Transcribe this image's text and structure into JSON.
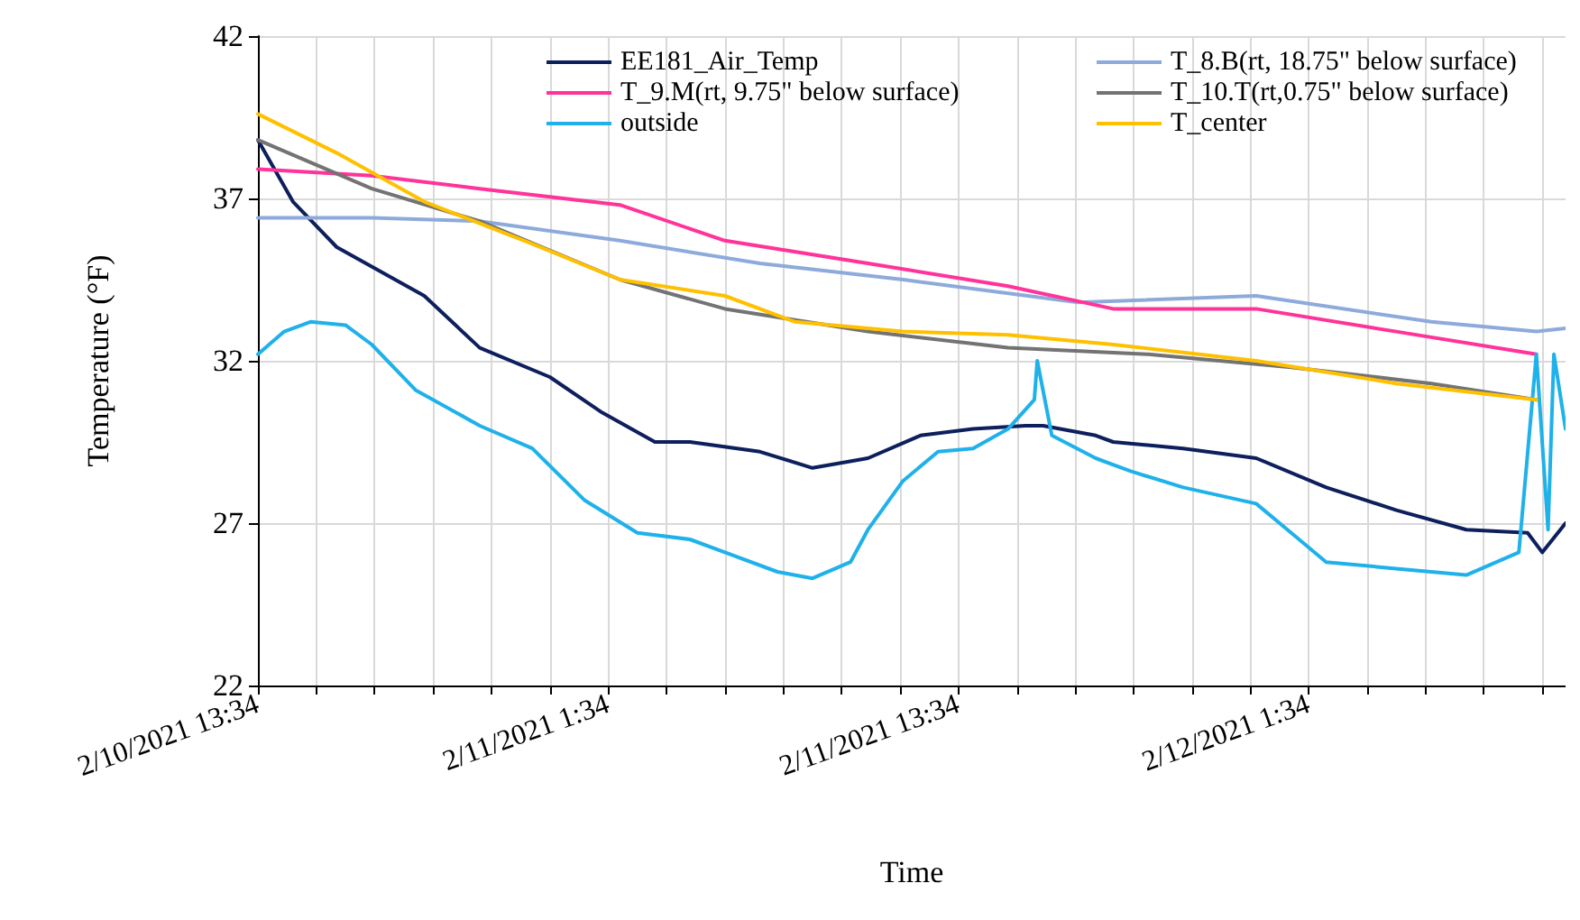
{
  "chart_data": {
    "type": "line",
    "xlabel": "Time",
    "ylabel": "Temperature (°F)",
    "xlim": [
      "2021-02-10T13:34",
      "2021-02-12T10:22"
    ],
    "ylim": [
      22,
      42
    ],
    "xticks": [
      {
        "value": "2021-02-10T13:34",
        "label": "2/10/2021 13:34"
      },
      {
        "value": "2021-02-10T15:34",
        "label": null
      },
      {
        "value": "2021-02-10T17:34",
        "label": null
      },
      {
        "value": "2021-02-10T19:34",
        "label": null
      },
      {
        "value": "2021-02-10T21:34",
        "label": null
      },
      {
        "value": "2021-02-10T23:34",
        "label": null
      },
      {
        "value": "2021-02-11T01:34",
        "label": "2/11/2021 1:34"
      },
      {
        "value": "2021-02-11T03:34",
        "label": null
      },
      {
        "value": "2021-02-11T05:34",
        "label": null
      },
      {
        "value": "2021-02-11T07:34",
        "label": null
      },
      {
        "value": "2021-02-11T09:34",
        "label": null
      },
      {
        "value": "2021-02-11T11:34",
        "label": null
      },
      {
        "value": "2021-02-11T13:34",
        "label": "2/11/2021 13:34"
      },
      {
        "value": "2021-02-11T15:34",
        "label": null
      },
      {
        "value": "2021-02-11T17:34",
        "label": null
      },
      {
        "value": "2021-02-11T19:34",
        "label": null
      },
      {
        "value": "2021-02-11T21:34",
        "label": null
      },
      {
        "value": "2021-02-11T23:34",
        "label": null
      },
      {
        "value": "2021-02-12T01:34",
        "label": "2/12/2021 1:34"
      },
      {
        "value": "2021-02-12T03:34",
        "label": null
      },
      {
        "value": "2021-02-12T05:34",
        "label": null
      },
      {
        "value": "2021-02-12T07:34",
        "label": null
      },
      {
        "value": "2021-02-12T09:34",
        "label": null
      }
    ],
    "yticks": [
      22,
      27,
      32,
      37,
      42
    ],
    "grid": true,
    "legend": "top",
    "marker": "none",
    "line_style": "solid",
    "series": [
      {
        "name": "EE181_Air_Temp",
        "color": "#0d1f5c",
        "x": [
          "2021-02-10T13:34",
          "2021-02-10T14:46",
          "2021-02-10T16:16",
          "2021-02-10T19:16",
          "2021-02-10T21:10",
          "2021-02-10T23:34",
          "2021-02-11T01:22",
          "2021-02-11T03:10",
          "2021-02-11T04:22",
          "2021-02-11T06:46",
          "2021-02-11T08:34",
          "2021-02-11T10:28",
          "2021-02-11T12:16",
          "2021-02-11T14:04",
          "2021-02-11T15:52",
          "2021-02-11T16:28",
          "2021-02-11T18:16",
          "2021-02-11T18:52",
          "2021-02-11T21:16",
          "2021-02-11T23:46",
          "2021-02-12T02:10",
          "2021-02-12T04:34",
          "2021-02-12T06:58",
          "2021-02-12T09:04",
          "2021-02-12T09:34",
          "2021-02-12T10:22"
        ],
        "values": [
          38.8,
          36.9,
          35.5,
          34.0,
          32.4,
          31.5,
          30.4,
          29.5,
          29.5,
          29.2,
          28.7,
          29.0,
          29.7,
          29.9,
          30.0,
          30.0,
          29.7,
          29.5,
          29.3,
          29.0,
          28.1,
          27.4,
          26.8,
          26.7,
          26.1,
          27.0
        ]
      },
      {
        "name": "T_8.B(rt, 18.75\" below surface)",
        "color": "#8eaadb",
        "x": [
          "2021-02-10T13:34",
          "2021-02-10T17:28",
          "2021-02-10T21:10",
          "2021-02-11T01:58",
          "2021-02-11T06:46",
          "2021-02-11T11:40",
          "2021-02-11T17:40",
          "2021-02-11T23:46",
          "2021-02-12T05:46",
          "2021-02-12T09:22",
          "2021-02-12T10:22"
        ],
        "values": [
          36.4,
          36.4,
          36.3,
          35.7,
          35.0,
          34.5,
          33.8,
          34.0,
          33.2,
          32.9,
          33.0
        ]
      },
      {
        "name": "T_9.M(rt, 9.75\" below surface)",
        "color": "#ff3399",
        "x": [
          "2021-02-10T13:34",
          "2021-02-10T17:28",
          "2021-02-10T21:10",
          "2021-02-11T01:58",
          "2021-02-11T05:34",
          "2021-02-11T10:28",
          "2021-02-11T15:16",
          "2021-02-11T18:52",
          "2021-02-11T23:46",
          "2021-02-12T04:34",
          "2021-02-12T09:22"
        ],
        "values": [
          37.9,
          37.7,
          37.3,
          36.8,
          35.7,
          35.0,
          34.3,
          33.6,
          33.6,
          32.9,
          32.2
        ]
      },
      {
        "name": "T_10.T(rt,0.75\" below surface)",
        "color": "#737373",
        "x": [
          "2021-02-10T13:34",
          "2021-02-10T17:28",
          "2021-02-10T21:10",
          "2021-02-11T01:58",
          "2021-02-11T05:34",
          "2021-02-11T10:28",
          "2021-02-11T15:16",
          "2021-02-11T20:04",
          "2021-02-12T00:58",
          "2021-02-12T05:46",
          "2021-02-12T09:22"
        ],
        "values": [
          38.8,
          37.3,
          36.3,
          34.5,
          33.6,
          32.9,
          32.4,
          32.2,
          31.8,
          31.3,
          30.8
        ]
      },
      {
        "name": "outside",
        "color": "#1fb1ea",
        "x": [
          "2021-02-10T13:34",
          "2021-02-10T14:28",
          "2021-02-10T15:22",
          "2021-02-10T16:34",
          "2021-02-10T17:28",
          "2021-02-10T18:58",
          "2021-02-10T21:10",
          "2021-02-10T22:58",
          "2021-02-11T00:46",
          "2021-02-11T02:34",
          "2021-02-11T04:22",
          "2021-02-11T05:34",
          "2021-02-11T07:22",
          "2021-02-11T08:34",
          "2021-02-11T09:52",
          "2021-02-11T10:28",
          "2021-02-11T11:40",
          "2021-02-11T12:52",
          "2021-02-11T14:04",
          "2021-02-11T15:16",
          "2021-02-11T16:10",
          "2021-02-11T16:16",
          "2021-02-11T16:46",
          "2021-02-11T18:16",
          "2021-02-11T19:28",
          "2021-02-11T21:16",
          "2021-02-11T23:46",
          "2021-02-12T00:58",
          "2021-02-12T02:10",
          "2021-02-12T04:34",
          "2021-02-12T06:58",
          "2021-02-12T08:46",
          "2021-02-12T09:22",
          "2021-02-12T09:46",
          "2021-02-12T09:58",
          "2021-02-12T10:22"
        ],
        "values": [
          32.2,
          32.9,
          33.2,
          33.1,
          32.5,
          31.1,
          30.0,
          29.3,
          27.7,
          26.7,
          26.5,
          26.1,
          25.5,
          25.3,
          25.8,
          26.8,
          28.3,
          29.2,
          29.3,
          29.9,
          30.8,
          32.0,
          29.7,
          29.0,
          28.6,
          28.1,
          27.6,
          26.7,
          25.8,
          25.6,
          25.4,
          26.1,
          32.2,
          26.8,
          32.2,
          29.9
        ]
      },
      {
        "name": "T_center",
        "color": "#ffc000",
        "x": [
          "2021-02-10T13:34",
          "2021-02-10T16:16",
          "2021-02-10T19:16",
          "2021-02-10T22:58",
          "2021-02-11T01:58",
          "2021-02-11T05:34",
          "2021-02-11T07:58",
          "2021-02-11T11:40",
          "2021-02-11T15:16",
          "2021-02-11T18:52",
          "2021-02-11T23:46",
          "2021-02-12T04:34",
          "2021-02-12T09:22"
        ],
        "values": [
          39.6,
          38.4,
          36.9,
          35.6,
          34.5,
          34.0,
          33.2,
          32.9,
          32.8,
          32.5,
          32.0,
          31.3,
          30.8
        ]
      }
    ]
  }
}
